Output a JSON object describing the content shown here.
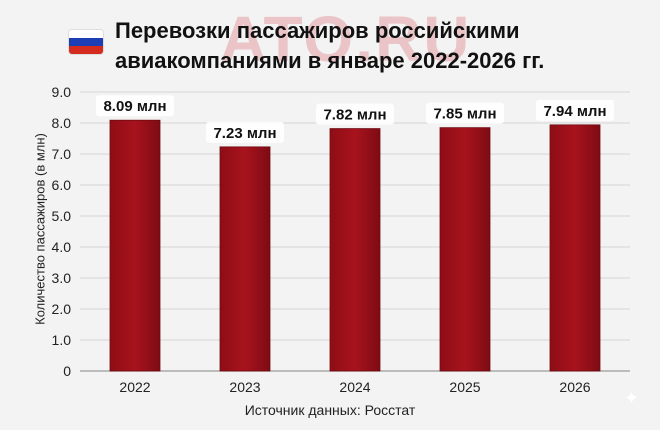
{
  "watermark": "ATO.RU",
  "flag_icon": "russia-flag-icon",
  "colors": {
    "bar": "#a5111b",
    "bar_dark": "#7e0b13",
    "flag": [
      "#ffffff",
      "#1c3fb5",
      "#d52b1e"
    ]
  },
  "title_lines": [
    "Перевозки пассажиров российскими",
    "авиакомпаниями в январе 2022-2026 гг."
  ],
  "source": "Источник данных: Росстат",
  "chart_data": {
    "type": "bar",
    "title": "Перевозки пассажиров российскими авиакомпаниями в январе 2022-2026 гг.",
    "xlabel": "",
    "ylabel": "Количество пассажиров (в млн)",
    "categories": [
      "2022",
      "2023",
      "2024",
      "2025",
      "2026"
    ],
    "values": [
      8.09,
      7.23,
      7.82,
      7.85,
      7.94
    ],
    "data_labels": [
      "8.09 млн",
      "7.23 млн",
      "7.82 млн",
      "7.85 млн",
      "7.94 млн"
    ],
    "yticks": [
      "0",
      "1.0",
      "2.0",
      "3.0",
      "4.0",
      "5.0",
      "6.0",
      "7.0",
      "8.0",
      "9.0"
    ],
    "ylim": [
      0,
      9
    ],
    "grid": true,
    "legend": "none"
  }
}
